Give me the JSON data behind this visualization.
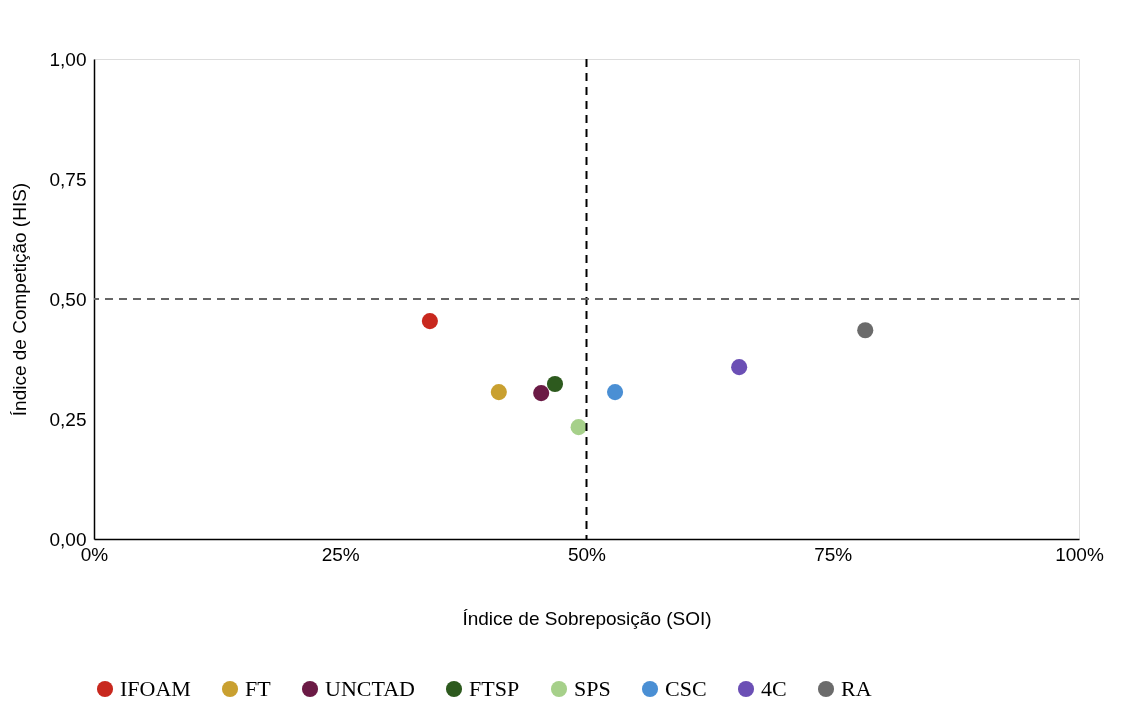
{
  "chart_data": {
    "type": "scatter",
    "xlabel": "Índice de Sobreposição (SOI)",
    "ylabel": "Índice de Competição (HIS)",
    "xlim": [
      0,
      100
    ],
    "ylim": [
      0,
      1
    ],
    "xticks": [
      {
        "value": 0,
        "label": "0%"
      },
      {
        "value": 25,
        "label": "25%"
      },
      {
        "value": 50,
        "label": "50%"
      },
      {
        "value": 75,
        "label": "75%"
      },
      {
        "value": 100,
        "label": "100%"
      }
    ],
    "yticks": [
      {
        "value": 0,
        "label": "0,00"
      },
      {
        "value": 0.25,
        "label": "0,25"
      },
      {
        "value": 0.5,
        "label": "0,50"
      },
      {
        "value": 0.75,
        "label": "0,75"
      },
      {
        "value": 1,
        "label": "1,00"
      }
    ],
    "grid": false,
    "legend": "bottom",
    "marker": "circle",
    "ref_lines": [
      {
        "axis": "x",
        "value": 50,
        "color": "#000000",
        "line_style": "dashed"
      },
      {
        "axis": "y",
        "value": 0.5,
        "color": "#666666",
        "line_style": "dashed"
      }
    ],
    "series": [
      {
        "name": "IFOAM",
        "color": "#c8281e",
        "x": [
          34.1
        ],
        "values": [
          0.454
        ]
      },
      {
        "name": "FT",
        "color": "#c9a030",
        "x": [
          41.1
        ],
        "values": [
          0.306
        ]
      },
      {
        "name": "UNCTAD",
        "color": "#6b1a45",
        "x": [
          45.4
        ],
        "values": [
          0.304
        ]
      },
      {
        "name": "FTSP",
        "color": "#2d5a1e",
        "x": [
          46.8
        ],
        "values": [
          0.323
        ]
      },
      {
        "name": "SPS",
        "color": "#a6d08a",
        "x": [
          49.2
        ],
        "values": [
          0.233
        ]
      },
      {
        "name": "CSC",
        "color": "#4a8fd4",
        "x": [
          52.9
        ],
        "values": [
          0.306
        ]
      },
      {
        "name": "4C",
        "color": "#6b4fb5",
        "x": [
          65.5
        ],
        "values": [
          0.358
        ]
      },
      {
        "name": "RA",
        "color": "#6b6b6b",
        "x": [
          78.3
        ],
        "values": [
          0.435
        ]
      }
    ]
  }
}
